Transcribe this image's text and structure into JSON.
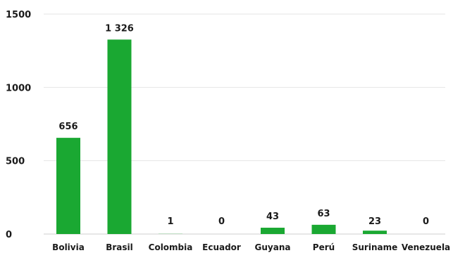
{
  "chart_data": {
    "type": "bar",
    "categories": [
      "Bolivia",
      "Brasil",
      "Colombia",
      "Ecuador",
      "Guyana",
      "Perú",
      "Suriname",
      "Venezuela"
    ],
    "values": [
      656,
      1326,
      1,
      0,
      43,
      63,
      23,
      0
    ],
    "value_labels": [
      "656",
      "1 326",
      "1",
      "0",
      "43",
      "63",
      "23",
      "0"
    ],
    "yticks": [
      0,
      500,
      1000,
      1500
    ],
    "ytick_labels": [
      "0",
      "500",
      "1000",
      "1500"
    ],
    "ylim": [
      0,
      1500
    ],
    "grid": true,
    "bar_color": "#1aa832",
    "title": "",
    "xlabel": "",
    "ylabel": ""
  }
}
